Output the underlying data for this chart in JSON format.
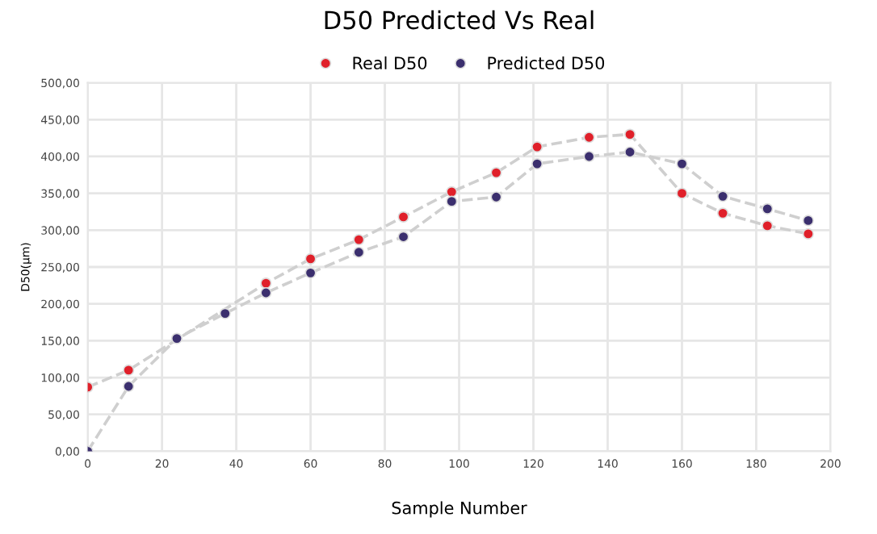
{
  "chart_data": {
    "type": "line",
    "title": "D50 Predicted Vs Real",
    "xlabel": "Sample Number",
    "ylabel": "D50(µm)",
    "x": [
      0,
      11,
      24,
      37,
      48,
      60,
      73,
      85,
      98,
      110,
      121,
      135,
      146,
      160,
      171,
      183,
      194
    ],
    "series": [
      {
        "name": "Real D50",
        "color": "#e0202a",
        "values": [
          87,
          110,
          null,
          null,
          228,
          261,
          287,
          318,
          352,
          378,
          413,
          426,
          430,
          350,
          323,
          306,
          295
        ]
      },
      {
        "name": "Predicted D50",
        "color": "#3b2f6e",
        "values": [
          0,
          88,
          153,
          187,
          215,
          242,
          270,
          291,
          339,
          345,
          390,
          400,
          406,
          390,
          346,
          329,
          313
        ]
      }
    ],
    "xlim": [
      0,
      200
    ],
    "xticks": [
      0,
      20,
      40,
      60,
      80,
      100,
      120,
      140,
      160,
      180,
      200
    ],
    "ylim": [
      0,
      500
    ],
    "yticks": [
      {
        "value": 0,
        "label": "0,00"
      },
      {
        "value": 50,
        "label": "50,00"
      },
      {
        "value": 100,
        "label": "100,00"
      },
      {
        "value": 150,
        "label": "150,00"
      },
      {
        "value": 200,
        "label": "200,00"
      },
      {
        "value": 250,
        "label": "250,00"
      },
      {
        "value": 300,
        "label": "300,00"
      },
      {
        "value": 350,
        "label": "350,00"
      },
      {
        "value": 400,
        "label": "400,00"
      },
      {
        "value": 450,
        "label": "450,00"
      },
      {
        "value": 500,
        "label": "500,00"
      }
    ],
    "grid": true,
    "legend": "top",
    "marker": "circle",
    "line_style": "dashed"
  }
}
